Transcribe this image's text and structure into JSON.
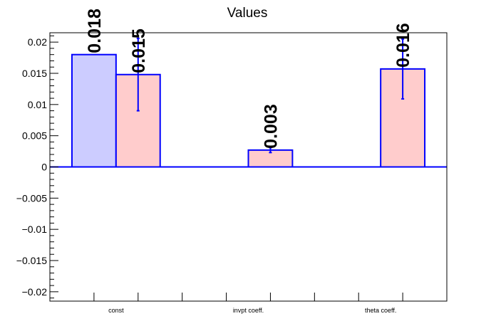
{
  "chart_data": {
    "type": "bar",
    "title": "Values",
    "xlabel": "",
    "ylabel": "",
    "ylim": [
      -0.0215,
      0.0215
    ],
    "y_ticks": [
      -0.02,
      -0.015,
      -0.01,
      -0.005,
      0,
      0.005,
      0.01,
      0.015,
      0.02
    ],
    "y_tick_labels": [
      "−0.02",
      "−0.015",
      "−0.01",
      "−0.005",
      "0",
      "0.005",
      "0.01",
      "0.015",
      "0.02"
    ],
    "categories": [
      "const",
      "invpt coeff.",
      "theta coeff."
    ],
    "grid": false,
    "legend": "none",
    "series": [
      {
        "color_fill": "#ccccff",
        "color_edge": "#0000ff",
        "values": [
          0.018,
          null,
          null
        ],
        "errors": [
          null,
          null,
          null
        ],
        "labels": [
          "0.018",
          "",
          ""
        ]
      },
      {
        "color_fill": "#ffcccc",
        "color_edge": "#0000ff",
        "values": [
          0.0148,
          0.0027,
          0.0157
        ],
        "errors": [
          0.0058,
          0.0004,
          0.0048
        ],
        "labels": [
          "0.015",
          "0.003",
          "0.016"
        ]
      }
    ]
  }
}
